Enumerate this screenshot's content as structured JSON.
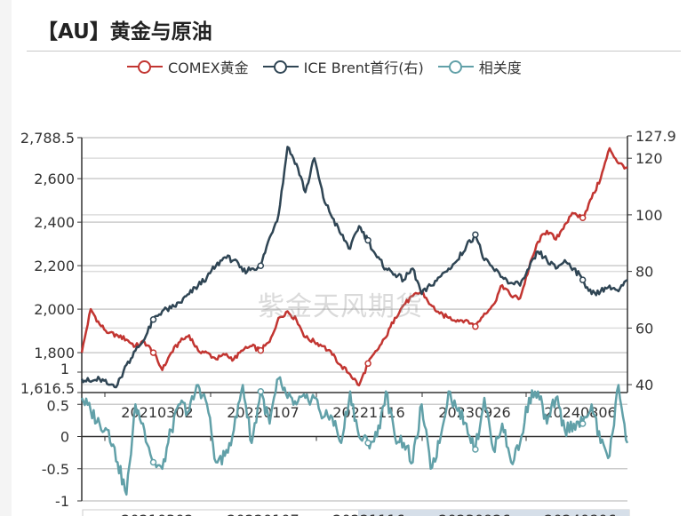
{
  "title": "【AU】黄金与原油",
  "watermark": "紫金天风期货",
  "colors": {
    "gold": "#c23531",
    "brent": "#2f4554",
    "corr": "#61a0a8"
  },
  "legend": [
    {
      "label": "COMEX黄金",
      "color": "#c23531"
    },
    {
      "label": "ICE Brent首行(右)",
      "color": "#2f4554"
    },
    {
      "label": "相关度",
      "color": "#61a0a8"
    }
  ],
  "chart_data": {
    "type": "line",
    "x_range": [
      "2020-07-24",
      "2024-12-20"
    ],
    "x_tick_labels": [
      "20210302",
      "20220107",
      "20221116",
      "20230926",
      "20240806"
    ],
    "left_axis": {
      "min": 1616.5,
      "max": 2788.5,
      "tick_labels": [
        "2,788.5",
        "2,600",
        "2,400",
        "2,200",
        "2,000",
        "1,800",
        "1,616.5"
      ]
    },
    "right_axis": {
      "min": 37.2,
      "max": 127.9,
      "tick_labels": [
        "127.9",
        "120",
        "100",
        "80",
        "60",
        "40"
      ]
    },
    "corr_axis": {
      "min": -1,
      "max": 1,
      "tick_labels": [
        "1",
        "0.5",
        "0",
        "-0.5",
        "-1"
      ]
    },
    "grid": true,
    "legend_position": "top",
    "series": [
      {
        "name": "COMEX黄金",
        "axis": "left",
        "values": [
          1800,
          2000,
          1930,
          1890,
          1880,
          1860,
          1830,
          1850,
          1800,
          1720,
          1800,
          1850,
          1880,
          1810,
          1800,
          1770,
          1790,
          1770,
          1810,
          1830,
          1810,
          1850,
          1960,
          1990,
          1950,
          1870,
          1850,
          1830,
          1790,
          1740,
          1700,
          1650,
          1750,
          1810,
          1870,
          1960,
          2020,
          2060,
          2080,
          2020,
          1980,
          1960,
          1950,
          1950,
          1920,
          1980,
          2020,
          2110,
          2060,
          2050,
          2190,
          2310,
          2360,
          2320,
          2390,
          2440,
          2420,
          2510,
          2600,
          2740,
          2670,
          2650
        ]
      },
      {
        "name": "ICE Brent首行(右)",
        "axis": "right",
        "values": [
          42,
          41,
          42,
          40,
          40,
          47,
          52,
          56,
          63,
          66,
          67,
          69,
          72,
          75,
          78,
          82,
          85,
          84,
          80,
          81,
          82,
          92,
          100,
          124,
          118,
          108,
          120,
          106,
          99,
          93,
          88,
          96,
          91,
          85,
          81,
          79,
          77,
          81,
          72,
          75,
          78,
          81,
          84,
          89,
          93,
          84,
          81,
          78,
          76,
          75,
          81,
          87,
          84,
          81,
          84,
          81,
          77,
          72,
          73,
          75,
          73,
          77
        ]
      },
      {
        "name": "相关度",
        "axis": "corr",
        "values": [
          0.6,
          0.4,
          0.2,
          0.1,
          -0.4,
          -0.9,
          0.5,
          0.1,
          -0.4,
          -0.5,
          0.1,
          0.5,
          0.4,
          0.8,
          0.5,
          -0.4,
          -0.3,
          0.1,
          0.8,
          -0.1,
          0.7,
          0.2,
          0.9,
          0.6,
          0.5,
          0.6,
          0.6,
          0.3,
          0.3,
          -0.1,
          0.7,
          0,
          -0.1,
          0,
          0.7,
          0,
          -0.1,
          -0.4,
          0.5,
          -0.5,
          -0.1,
          0.7,
          0.4,
          0.2,
          -0.2,
          0.6,
          -0.2,
          0.2,
          -0.4,
          -0.1,
          0.6,
          0.7,
          0.2,
          0.6,
          0.1,
          0.2,
          0.2,
          0.5,
          -0.1,
          -0.3,
          0.8,
          -0.1
        ]
      }
    ]
  }
}
